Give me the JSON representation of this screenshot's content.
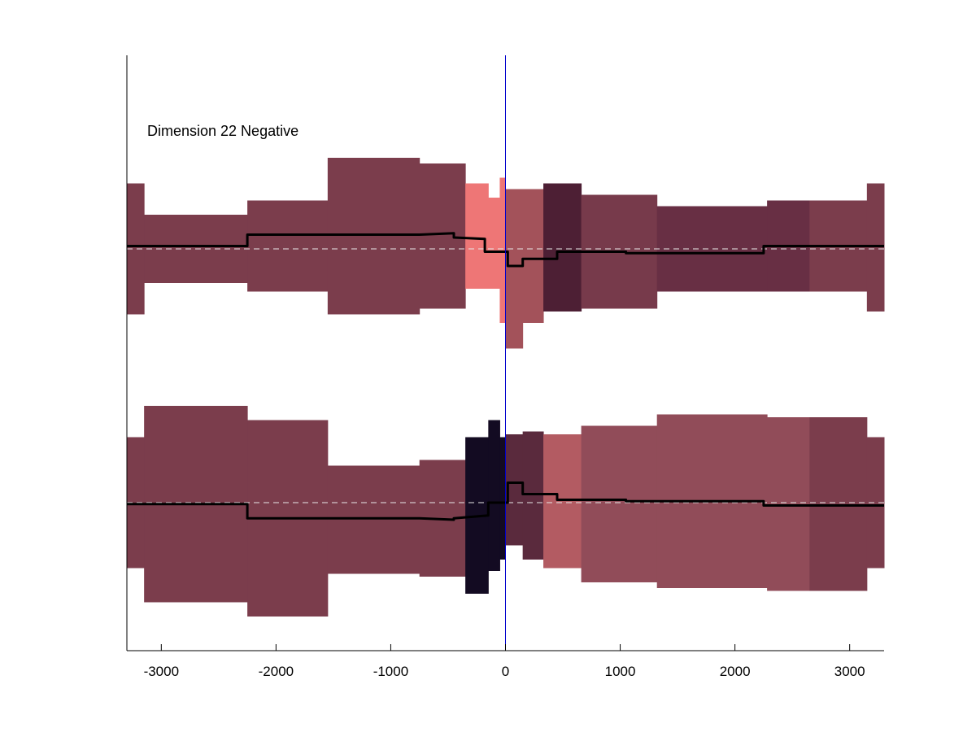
{
  "chart_data": {
    "type": "area",
    "title": "",
    "xlabel": "",
    "ylabel": "",
    "annotation": "Dimension 22 Negative",
    "xlim": [
      -3300,
      3300
    ],
    "xticks": [
      -3000,
      -2000,
      -1000,
      0,
      1000,
      2000,
      3000
    ],
    "xtick_labels": [
      "-3000",
      "-2000",
      "-1000",
      "0",
      "1000",
      "2000",
      "3000"
    ],
    "zero_line_color": "#0000cc",
    "grid": false,
    "tracks": [
      {
        "baseline": 0,
        "bands": [
          {
            "x0": -3300,
            "x1": -3150,
            "lo": -2.3,
            "hi": 2.3,
            "color": "#7b3d4c"
          },
          {
            "x0": -3150,
            "x1": -2250,
            "lo": -1.2,
            "hi": 1.2,
            "color": "#7b3d4c"
          },
          {
            "x0": -2250,
            "x1": -1550,
            "lo": -1.5,
            "hi": 1.7,
            "color": "#7b3d4c"
          },
          {
            "x0": -1550,
            "x1": -750,
            "lo": -2.3,
            "hi": 3.2,
            "color": "#7b3d4c"
          },
          {
            "x0": -750,
            "x1": -350,
            "lo": -2.1,
            "hi": 3.0,
            "color": "#7b3d4c"
          },
          {
            "x0": -350,
            "x1": -150,
            "lo": -1.4,
            "hi": 2.3,
            "color": "#ee7676"
          },
          {
            "x0": -150,
            "x1": -50,
            "lo": -1.4,
            "hi": 1.8,
            "color": "#ee7676"
          },
          {
            "x0": -50,
            "x1": 0,
            "lo": -2.6,
            "hi": 2.5,
            "color": "#ee7676"
          },
          {
            "x0": 0,
            "x1": 150,
            "lo": -3.5,
            "hi": 2.1,
            "color": "#a3525a"
          },
          {
            "x0": 150,
            "x1": 330,
            "lo": -2.6,
            "hi": 2.1,
            "color": "#a3525a"
          },
          {
            "x0": 330,
            "x1": 660,
            "lo": -2.2,
            "hi": 2.3,
            "color": "#4d1f34"
          },
          {
            "x0": 660,
            "x1": 1320,
            "lo": -2.1,
            "hi": 1.9,
            "color": "#773a4b"
          },
          {
            "x0": 1320,
            "x1": 2280,
            "lo": -1.5,
            "hi": 1.5,
            "color": "#682f44"
          },
          {
            "x0": 2280,
            "x1": 2650,
            "lo": -1.5,
            "hi": 1.7,
            "color": "#682f44"
          },
          {
            "x0": 2650,
            "x1": 3150,
            "lo": -1.5,
            "hi": 1.7,
            "color": "#7b3d4c"
          },
          {
            "x0": 3150,
            "x1": 3300,
            "lo": -2.2,
            "hi": 2.3,
            "color": "#7b3d4c"
          }
        ],
        "line": {
          "x": [
            -3300,
            -2250,
            -2250,
            -750,
            -450,
            -450,
            -180,
            -180,
            20,
            20,
            150,
            150,
            450,
            450,
            1050,
            1050,
            2250,
            2250,
            3300
          ],
          "y": [
            0.1,
            0.1,
            0.5,
            0.5,
            0.55,
            0.4,
            0.35,
            -0.1,
            -0.1,
            -0.6,
            -0.6,
            -0.35,
            -0.35,
            -0.1,
            -0.1,
            -0.15,
            -0.15,
            0.1,
            0.1
          ]
        }
      },
      {
        "baseline": 0,
        "bands": [
          {
            "x0": -3300,
            "x1": -3150,
            "lo": -2.3,
            "hi": 2.3,
            "color": "#7b3d4c"
          },
          {
            "x0": -3150,
            "x1": -2250,
            "lo": -3.5,
            "hi": 3.4,
            "color": "#7b3d4c"
          },
          {
            "x0": -2250,
            "x1": -1550,
            "lo": -4.0,
            "hi": 2.9,
            "color": "#7b3d4c"
          },
          {
            "x0": -1550,
            "x1": -750,
            "lo": -2.5,
            "hi": 1.3,
            "color": "#7b3d4c"
          },
          {
            "x0": -750,
            "x1": -350,
            "lo": -2.6,
            "hi": 1.5,
            "color": "#7b3d4c"
          },
          {
            "x0": -350,
            "x1": -150,
            "lo": -3.2,
            "hi": 2.3,
            "color": "#130b22"
          },
          {
            "x0": -150,
            "x1": -50,
            "lo": -2.4,
            "hi": 2.9,
            "color": "#130b22"
          },
          {
            "x0": -50,
            "x1": 0,
            "lo": -2.0,
            "hi": 2.3,
            "color": "#130b22"
          },
          {
            "x0": 0,
            "x1": 150,
            "lo": -1.5,
            "hi": 2.4,
            "color": "#5a2a3d"
          },
          {
            "x0": 150,
            "x1": 330,
            "lo": -2.0,
            "hi": 2.5,
            "color": "#5a2a3d"
          },
          {
            "x0": 330,
            "x1": 660,
            "lo": -2.3,
            "hi": 2.4,
            "color": "#b35b62"
          },
          {
            "x0": 660,
            "x1": 1320,
            "lo": -2.8,
            "hi": 2.7,
            "color": "#914c59"
          },
          {
            "x0": 1320,
            "x1": 2280,
            "lo": -3.0,
            "hi": 3.1,
            "color": "#914c59"
          },
          {
            "x0": 2280,
            "x1": 2650,
            "lo": -3.1,
            "hi": 3.0,
            "color": "#914c59"
          },
          {
            "x0": 2650,
            "x1": 3150,
            "lo": -3.1,
            "hi": 3.0,
            "color": "#7b3d4c"
          },
          {
            "x0": 3150,
            "x1": 3300,
            "lo": -2.3,
            "hi": 2.3,
            "color": "#7b3d4c"
          }
        ],
        "line": {
          "x": [
            -3300,
            -2250,
            -2250,
            -750,
            -450,
            -450,
            -150,
            -150,
            20,
            20,
            150,
            150,
            450,
            450,
            1050,
            1050,
            2250,
            2250,
            3300
          ],
          "y": [
            -0.05,
            -0.05,
            -0.55,
            -0.55,
            -0.6,
            -0.55,
            -0.45,
            0.0,
            0.0,
            0.7,
            0.7,
            0.3,
            0.3,
            0.1,
            0.1,
            0.05,
            0.05,
            -0.1,
            -0.1
          ]
        }
      }
    ]
  }
}
